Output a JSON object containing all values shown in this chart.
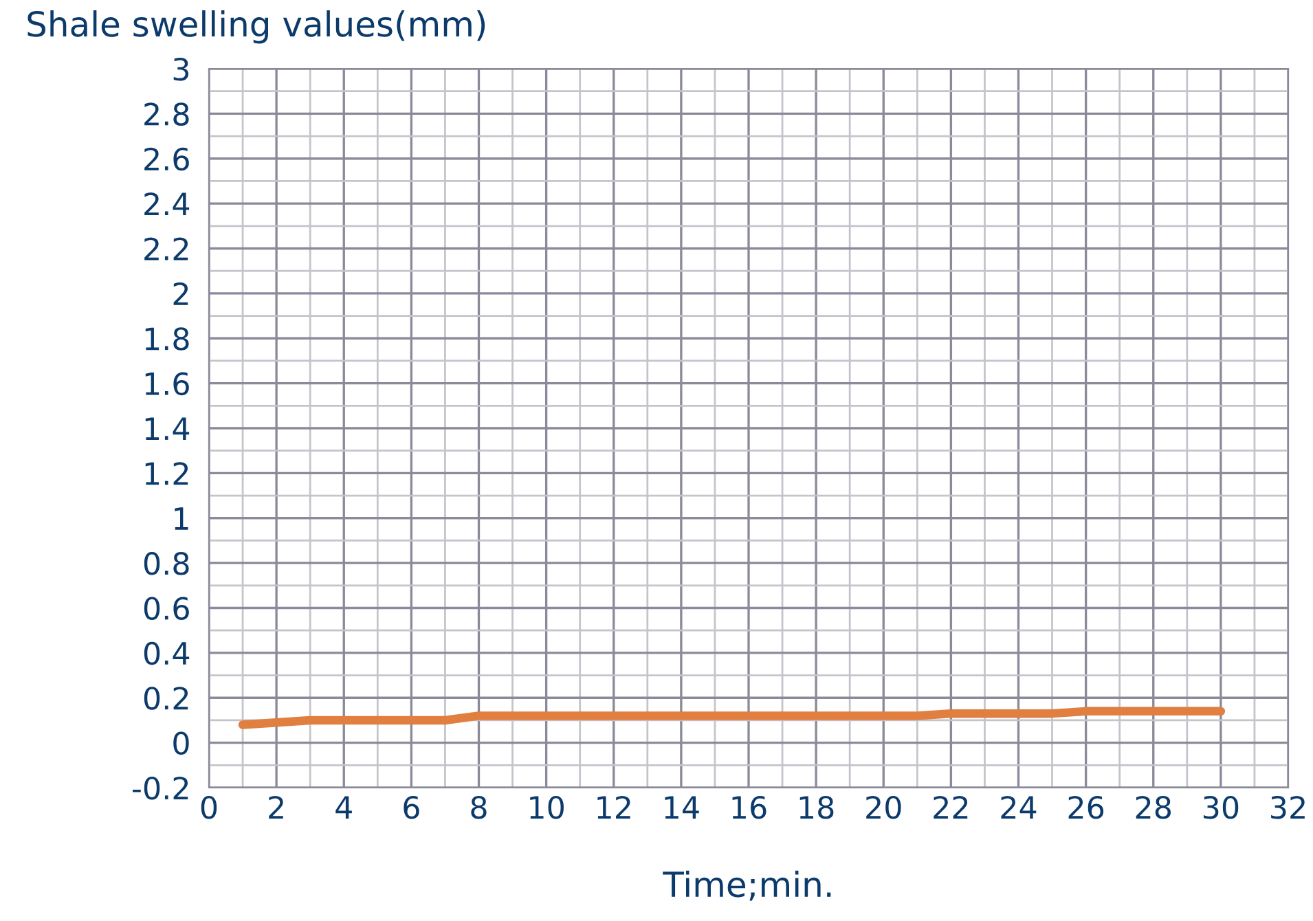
{
  "chart_data": {
    "type": "line",
    "xlabel": "Time;min.",
    "ylabel": "Shale swelling values(mm)",
    "x": [
      1,
      2,
      3,
      4,
      5,
      6,
      7,
      8,
      9,
      10,
      11,
      12,
      13,
      14,
      15,
      16,
      17,
      18,
      19,
      20,
      21,
      22,
      23,
      24,
      25,
      26,
      27,
      28,
      29,
      30
    ],
    "series": [
      {
        "color": "#e07f3f",
        "values": [
          0.08,
          0.09,
          0.1,
          0.1,
          0.1,
          0.1,
          0.1,
          0.12,
          0.12,
          0.12,
          0.12,
          0.12,
          0.12,
          0.12,
          0.12,
          0.12,
          0.12,
          0.12,
          0.12,
          0.12,
          0.12,
          0.13,
          0.13,
          0.13,
          0.13,
          0.14,
          0.14,
          0.14,
          0.14,
          0.14
        ]
      }
    ],
    "xlim": [
      0,
      32
    ],
    "xticks": [
      0,
      2,
      4,
      6,
      8,
      10,
      12,
      14,
      16,
      18,
      20,
      22,
      24,
      26,
      28,
      30,
      32
    ],
    "ylim": [
      -0.2,
      3
    ],
    "yticks": [
      -0.2,
      0,
      0.2,
      0.4,
      0.6,
      0.8,
      1,
      1.2,
      1.4,
      1.6,
      1.8,
      2,
      2.2,
      2.4,
      2.6,
      2.8,
      3
    ],
    "grid": true,
    "line_style": "solid",
    "marker": "none"
  }
}
